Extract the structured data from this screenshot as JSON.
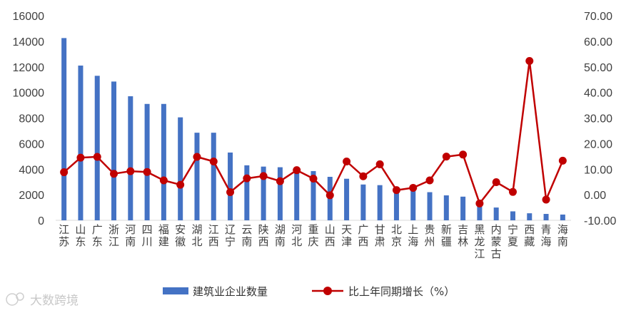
{
  "chart_data": {
    "type": "bar",
    "categories": [
      "江苏",
      "山东",
      "广东",
      "浙江",
      "河南",
      "四川",
      "福建",
      "安徽",
      "湖北",
      "江西",
      "辽宁",
      "云南",
      "陕西",
      "湖南",
      "河北",
      "重庆",
      "山西",
      "天津",
      "广西",
      "甘肃",
      "北京",
      "上海",
      "贵州",
      "新疆",
      "吉林",
      "黑龙江",
      "内蒙古",
      "宁夏",
      "西藏",
      "青海",
      "海南"
    ],
    "series": [
      {
        "name": "建筑业企业数量",
        "chart": "bar",
        "axis": "left",
        "color": "#4472c4",
        "values": [
          14250,
          12100,
          11300,
          10850,
          9700,
          9100,
          9100,
          8050,
          6850,
          6850,
          5300,
          4300,
          4200,
          4150,
          4000,
          3850,
          3400,
          3250,
          2800,
          2750,
          2550,
          2500,
          2200,
          1950,
          1850,
          1300,
          1000,
          700,
          550,
          500,
          450
        ]
      },
      {
        "name": "比上年同期增长（%）",
        "chart": "line",
        "axis": "right",
        "color": "#c00000",
        "values": [
          8.8,
          14.5,
          14.8,
          8.2,
          9.2,
          8.9,
          5.6,
          3.9,
          14.8,
          13.0,
          1.0,
          6.4,
          7.3,
          5.3,
          9.6,
          6.3,
          -0.2,
          13.0,
          7.2,
          11.9,
          1.8,
          2.7,
          5.6,
          14.9,
          15.7,
          -3.4,
          4.9,
          1.1,
          52.3,
          -1.9,
          13.3
        ]
      }
    ],
    "y_left": {
      "min": 0,
      "max": 16000,
      "ticks": [
        "0",
        "2000",
        "4000",
        "6000",
        "8000",
        "10000",
        "12000",
        "14000",
        "16000"
      ]
    },
    "y_right": {
      "min": -10,
      "max": 70,
      "ticks": [
        "-10.00",
        "0.00",
        "10.00",
        "20.00",
        "30.00",
        "40.00",
        "50.00",
        "60.00",
        "70.00"
      ]
    },
    "grid": false,
    "legend_position": "bottom"
  },
  "watermark": "大数跨境"
}
